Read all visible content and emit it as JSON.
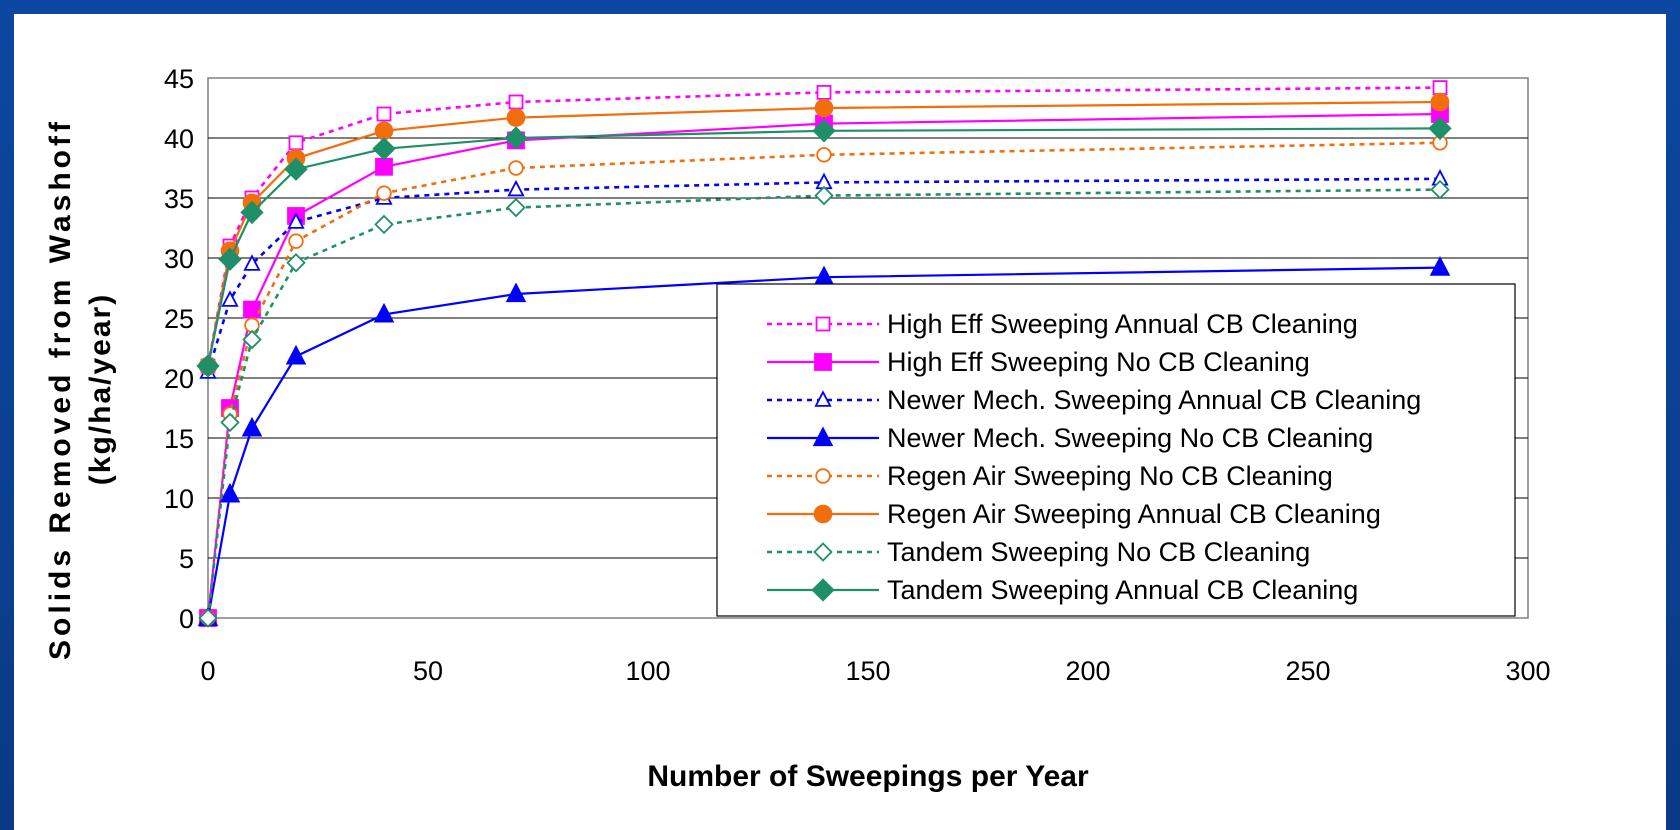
{
  "chart_data": {
    "type": "line",
    "title": "",
    "xlabel": "Number of Sweepings per Year",
    "ylabel_line1": "Solids Removed from Washoff",
    "ylabel_line2": "(kg/ha/year)",
    "xlim": [
      0,
      300
    ],
    "ylim": [
      0,
      45
    ],
    "xticks": [
      0,
      50,
      100,
      150,
      200,
      250,
      300
    ],
    "yticks": [
      0,
      5,
      10,
      15,
      20,
      25,
      30,
      35,
      40,
      45
    ],
    "grid": "horizontal",
    "legend_position": "right",
    "x": [
      0,
      5,
      10,
      20,
      40,
      70,
      140,
      280
    ],
    "series": [
      {
        "name": "High Eff Sweeping Annual CB Cleaning",
        "color": "#ff00ff",
        "dash": "dotted",
        "marker": "square",
        "filled": false,
        "values": [
          21,
          31,
          35,
          39.6,
          42,
          43,
          43.8,
          44.2
        ]
      },
      {
        "name": "High Eff Sweeping No CB Cleaning",
        "color": "#ff00ff",
        "dash": "solid",
        "marker": "square",
        "filled": true,
        "values": [
          0,
          17.5,
          25.7,
          33.5,
          37.6,
          39.8,
          41.2,
          42
        ]
      },
      {
        "name": "Newer Mech. Sweeping Annual CB Cleaning",
        "color": "#0000ff",
        "dash": "dotted",
        "marker": "triangle",
        "filled": false,
        "values": [
          20.5,
          26.5,
          29.5,
          33,
          35,
          35.7,
          36.3,
          36.6
        ]
      },
      {
        "name": "Newer Mech. Sweeping No CB Cleaning",
        "color": "#0000ff",
        "dash": "solid",
        "marker": "triangle",
        "filled": true,
        "values": [
          0,
          10.3,
          15.8,
          21.8,
          25.3,
          27,
          28.4,
          29.2
        ]
      },
      {
        "name": "Regen Air Sweeping No CB Cleaning",
        "color": "#f26d0c",
        "dash": "dotted",
        "marker": "circle",
        "filled": false,
        "values": [
          0,
          17,
          24.4,
          31.4,
          35.4,
          37.5,
          38.6,
          39.6
        ]
      },
      {
        "name": "Regen Air Sweeping Annual CB Cleaning",
        "color": "#f26d0c",
        "dash": "solid",
        "marker": "circle",
        "filled": true,
        "values": [
          21,
          30.6,
          34.6,
          38.3,
          40.6,
          41.7,
          42.5,
          43
        ]
      },
      {
        "name": "Tandem Sweeping No CB Cleaning",
        "color": "#1f8f6a",
        "dash": "dotted",
        "marker": "diamond",
        "filled": false,
        "values": [
          0,
          16.3,
          23.2,
          29.6,
          32.8,
          34.2,
          35.2,
          35.7
        ]
      },
      {
        "name": "Tandem Sweeping Annual CB Cleaning",
        "color": "#1f8f6a",
        "dash": "solid",
        "marker": "diamond",
        "filled": true,
        "values": [
          21,
          29.9,
          33.8,
          37.4,
          39.1,
          40,
          40.6,
          40.8
        ]
      }
    ]
  }
}
